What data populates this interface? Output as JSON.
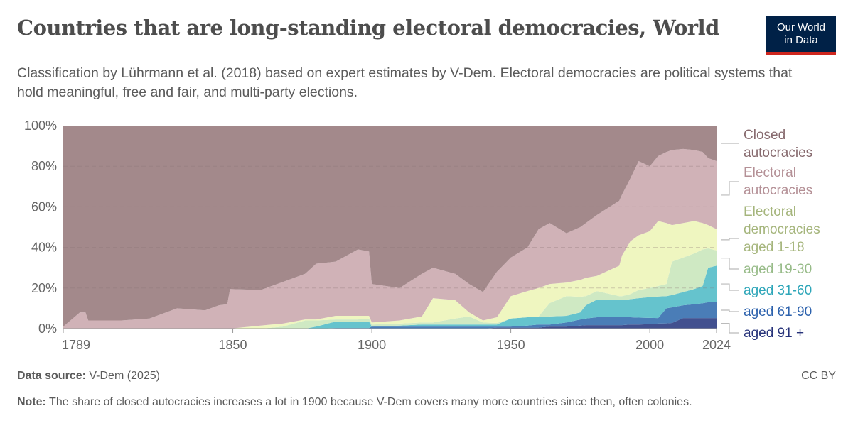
{
  "header": {
    "title": "Countries that are long-standing electoral democracies, World",
    "subtitle": "Classification by Lührmann et al. (2018) based on expert estimates by V-Dem. Electoral democracies are political systems that hold meaningful, free and fair, and multi-party elections.",
    "logo_line1": "Our World",
    "logo_line2": "in Data"
  },
  "footer": {
    "source_label": "Data source:",
    "source": "V-Dem (2025)",
    "license": "CC BY",
    "note_label": "Note:",
    "note": "The share of closed autocracies increases a lot in 1900 because V-Dem covers many more countries since then, often colonies."
  },
  "chart_data": {
    "type": "area",
    "stacked": true,
    "ylim": [
      0,
      100
    ],
    "xlim": [
      1789,
      2024
    ],
    "yticks": [
      "0%",
      "20%",
      "40%",
      "60%",
      "80%",
      "100%"
    ],
    "xticks": [
      "1789",
      "1850",
      "1900",
      "1950",
      "2000",
      "2024"
    ],
    "grid": "horizontal dashed",
    "legend": "right",
    "x": [
      1789,
      1795,
      1797,
      1798,
      1810,
      1820,
      1830,
      1840,
      1845,
      1848,
      1849,
      1860,
      1868,
      1876,
      1880,
      1887,
      1895,
      1899,
      1900,
      1910,
      1918,
      1922,
      1930,
      1935,
      1940,
      1945,
      1950,
      1956,
      1960,
      1964,
      1970,
      1975,
      1977,
      1981,
      1989,
      1990,
      1993,
      1996,
      2000,
      2003,
      2006,
      2008,
      2012,
      2016,
      2019,
      2021,
      2024
    ],
    "series": [
      {
        "name": "aged 91 +",
        "color": "#42508f",
        "text_color": "#27337a",
        "values": [
          0,
          0,
          0,
          0,
          0,
          0,
          0,
          0,
          0,
          0,
          0,
          0,
          0,
          0,
          0,
          0,
          0,
          0,
          0,
          0,
          0,
          0,
          0,
          0,
          0,
          0.5,
          0.5,
          0.5,
          0.5,
          1,
          1,
          1.5,
          1.7,
          1.7,
          1.7,
          1.7,
          2,
          2,
          2.2,
          2.5,
          2.6,
          2.8,
          5.2,
          5.2,
          5.2,
          5.2,
          5.2
        ]
      },
      {
        "name": "aged 61-90",
        "color": "#4a7db7",
        "text_color": "#2d62ad",
        "values": [
          0,
          0,
          0,
          0,
          0,
          0,
          0,
          0,
          0,
          0,
          0,
          0,
          0,
          0,
          0,
          0.3,
          0.3,
          0.3,
          1,
          1,
          1,
          1,
          1,
          1,
          1,
          0.5,
          0.5,
          1,
          1.5,
          1,
          2,
          3,
          3.3,
          3.9,
          3.9,
          3.9,
          3.6,
          3.4,
          3.1,
          2.7,
          7.4,
          7.7,
          6.3,
          6.8,
          7.3,
          7.8,
          7.8
        ]
      },
      {
        "name": "aged 31-60",
        "color": "#65c3cd",
        "text_color": "#2ea6b9",
        "values": [
          0,
          0,
          0,
          0,
          0,
          0,
          0,
          0,
          0,
          0,
          0,
          0,
          0,
          0,
          1,
          3.2,
          3.2,
          3.2,
          0,
          0.5,
          1,
          1,
          1,
          1,
          1,
          1,
          4,
          4.1,
          3.6,
          4,
          3.3,
          3.5,
          6.5,
          8.7,
          8.4,
          8.4,
          8.9,
          9.6,
          10.2,
          10.6,
          6,
          6,
          6.5,
          7.5,
          8.5,
          17,
          18
        ]
      },
      {
        "name": "aged 19-30",
        "color": "#cfe9c3",
        "text_color": "#97bb88",
        "values": [
          0,
          0,
          0,
          0,
          0,
          0,
          0,
          0,
          0,
          0,
          0,
          0,
          1,
          4,
          3,
          1,
          1,
          1.5,
          1,
          1,
          1,
          1,
          3,
          4,
          1,
          0.8,
          0,
          0,
          0.4,
          6.6,
          9.7,
          7.7,
          4.5,
          4.2,
          2,
          2,
          2.5,
          4,
          4.5,
          5.2,
          6,
          16.5,
          17,
          17.5,
          18,
          9.5,
          7.5
        ]
      },
      {
        "name": "Electoral democracies aged 1-18",
        "color": "#eff6c0",
        "text_color": "#a5b57c",
        "values": [
          0,
          0,
          0,
          0,
          0,
          0,
          0,
          0,
          0,
          0,
          0,
          1.5,
          1.5,
          0.5,
          0.5,
          1.8,
          1.8,
          1.3,
          1,
          1.5,
          3,
          12,
          9,
          2,
          1,
          2.8,
          11,
          12.9,
          14,
          9.4,
          6.7,
          8.3,
          9,
          7.5,
          15,
          20,
          26,
          27,
          28,
          32,
          30,
          18,
          17,
          16,
          13,
          11.5,
          10.5
        ]
      },
      {
        "name": "Electoral autocracies",
        "color": "#d0b2b7",
        "text_color": "#b49096",
        "values": [
          1,
          8,
          8,
          4,
          4,
          5,
          10,
          9,
          11.5,
          12,
          19.5,
          17.5,
          20.5,
          22.5,
          27.5,
          26.7,
          32.7,
          31.7,
          19,
          16,
          21,
          15,
          13,
          14,
          14,
          22.4,
          19,
          21.5,
          29,
          30,
          24.3,
          26,
          27,
          30,
          32,
          30,
          31,
          36.5,
          32,
          32,
          35,
          37,
          36.5,
          35,
          35,
          33,
          33.5
        ]
      },
      {
        "name": "Closed autocracies",
        "color": "#a3898b",
        "text_color": "#876a6e",
        "values": [
          99,
          92,
          92,
          96,
          96,
          95,
          90,
          91,
          88.5,
          88,
          80.5,
          81,
          77,
          73,
          68,
          67,
          61,
          62,
          78,
          80,
          73,
          70,
          73,
          78,
          82,
          72,
          65,
          60,
          51,
          48,
          53,
          50,
          48,
          44,
          37,
          34,
          26,
          17.5,
          20,
          15,
          13,
          12,
          11.5,
          12,
          13,
          16,
          17.5
        ]
      }
    ]
  }
}
